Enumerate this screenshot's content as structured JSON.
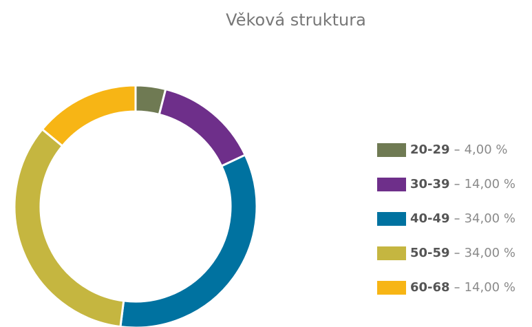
{
  "chart_data": {
    "type": "donut",
    "title": "Věková struktura",
    "categories": [
      "20-29",
      "30-39",
      "40-49",
      "50-59",
      "60-68"
    ],
    "values": [
      4,
      14,
      34,
      34,
      14
    ],
    "value_labels": [
      "4,00 %",
      "14,00 %",
      "34,00 %",
      "34,00 %",
      "14,00 %"
    ],
    "colors": [
      "#6f7a53",
      "#6e2f8a",
      "#0072a0",
      "#c5b640",
      "#f7b515"
    ],
    "legend": "right"
  }
}
